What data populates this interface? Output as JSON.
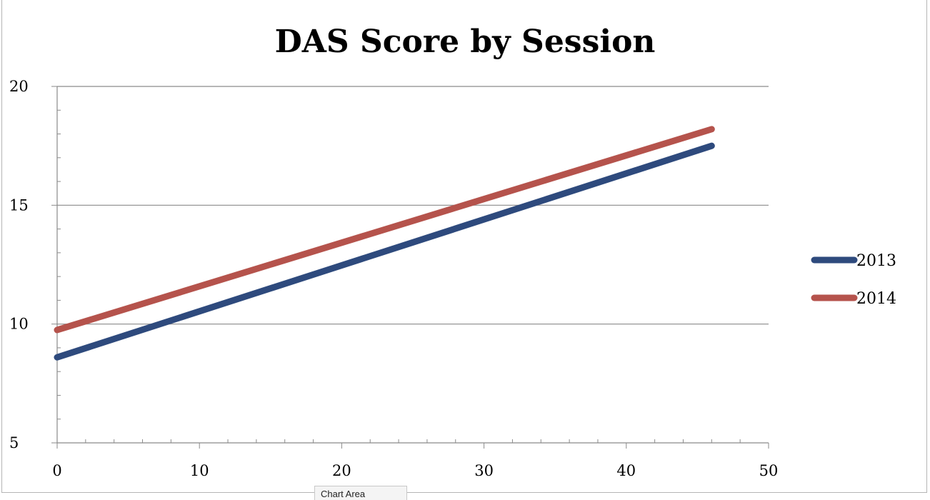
{
  "chart_data": {
    "type": "line",
    "title": "DAS Score by Session",
    "xlabel": "",
    "ylabel": "",
    "xlim": [
      0,
      50
    ],
    "ylim": [
      5,
      20
    ],
    "x_ticks": [
      0,
      10,
      20,
      30,
      40,
      50
    ],
    "y_ticks": [
      5,
      10,
      15,
      20
    ],
    "x_minor_step": 2,
    "y_minor_step": 1,
    "grid": "horizontal-major",
    "legend_position": "right",
    "series": [
      {
        "name": "2013",
        "color": "#2e4a7d",
        "x": [
          0,
          46
        ],
        "y": [
          8.6,
          17.5
        ]
      },
      {
        "name": "2014",
        "color": "#b5534c",
        "x": [
          0,
          46
        ],
        "y": [
          9.75,
          18.2
        ]
      }
    ]
  },
  "tab": {
    "label": "Chart Area"
  }
}
